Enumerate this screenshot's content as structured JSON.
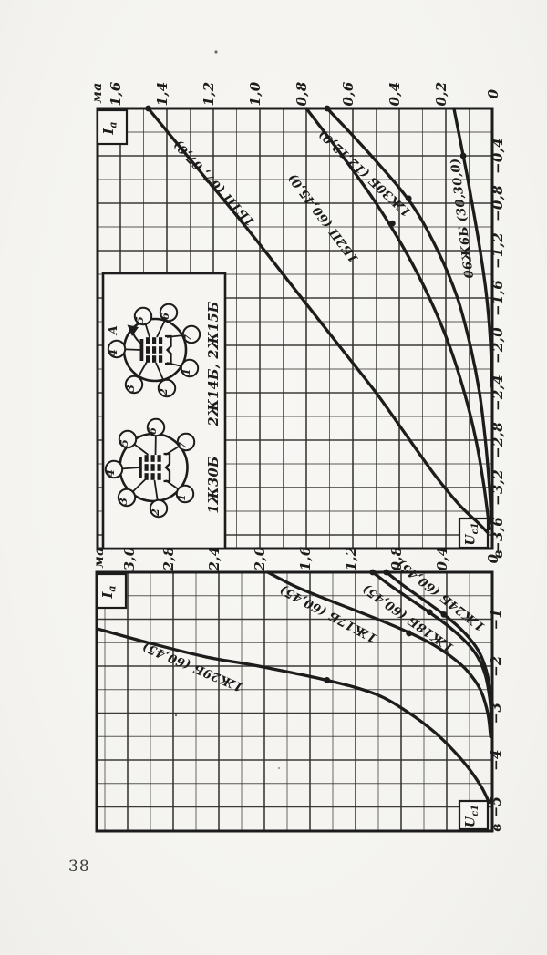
{
  "page": {
    "number": "38",
    "paper_color": "#f6f5f2",
    "ink_color": "#1c1c1c",
    "description": "Scanned book page rotated 90 degrees: two charts of anode current Ia versus first-grid voltage Uc1 for Soviet battery vacuum tubes, with a tube pinout inset box"
  },
  "chart_data": [
    {
      "id": "upper",
      "type": "line",
      "orientation_note": "chart printed rotated 90deg CCW: Ia axis runs along top edge right-to-left, Uc1 axis runs down the right edge",
      "y_axis": {
        "label_base": "I",
        "label_sub": "а",
        "unit": "ма",
        "range": [
          0,
          1.6
        ],
        "minor_step": 0.1,
        "tick_values": [
          1.6,
          1.4,
          1.2,
          1.0,
          0.8,
          0.6,
          0.4,
          0.2,
          0
        ],
        "tick_labels": [
          "1,6",
          "1,4",
          "1,2",
          "1,0",
          "0,8",
          "0,6",
          "0,4",
          "0,2",
          "0"
        ]
      },
      "x_axis": {
        "label_base": "U",
        "label_sub": "с1",
        "unit": "в",
        "range": [
          0,
          -3.6
        ],
        "minor_step": 0.2,
        "tick_values": [
          -0.4,
          -0.8,
          -1.2,
          -1.6,
          -2.0,
          -2.4,
          -2.8,
          -3.2,
          -3.6
        ],
        "tick_labels": [
          "−0,4",
          "−0,8",
          "−1,2",
          "−1,6",
          "−2,0",
          "−2,4",
          "−2,8",
          "−3,2",
          "−3,6"
        ]
      },
      "series": [
        {
          "name": "1Б1П",
          "conditions": "(67, 67,0)",
          "label": "1Б1П (67, 67,0)",
          "points": [
            [
              0,
              1.48
            ],
            [
              -0.5,
              1.27
            ],
            [
              -1.0,
              1.06
            ],
            [
              -1.5,
              0.86
            ],
            [
              -2.0,
              0.66
            ],
            [
              -2.4,
              0.5
            ],
            [
              -2.8,
              0.355
            ],
            [
              -3.1,
              0.245
            ],
            [
              -3.35,
              0.14
            ],
            [
              -3.5,
              0.06
            ],
            [
              -3.58,
              0.02
            ]
          ],
          "markers": [
            [
              0,
              1.48
            ]
          ]
        },
        {
          "name": "1Б2П",
          "conditions": "(60,45,0)",
          "label": "1Б2П (60,45,0)",
          "points": [
            [
              0,
              0.8
            ],
            [
              -0.4,
              0.645
            ],
            [
              -0.8,
              0.5
            ],
            [
              -1.2,
              0.375
            ],
            [
              -1.6,
              0.27
            ],
            [
              -2.0,
              0.185
            ],
            [
              -2.4,
              0.12
            ],
            [
              -2.8,
              0.07
            ],
            [
              -3.2,
              0.035
            ],
            [
              -3.55,
              0.012
            ]
          ],
          "markers": [
            [
              -0.97,
              0.43
            ]
          ]
        },
        {
          "name": "1Ж30Б",
          "conditions": "(12,12,0)",
          "label": "1Ж30Б (12,12,0)",
          "points": [
            [
              0,
              0.71
            ],
            [
              -0.4,
              0.52
            ],
            [
              -0.8,
              0.35
            ],
            [
              -1.2,
              0.235
            ],
            [
              -1.6,
              0.15
            ],
            [
              -2.0,
              0.095
            ],
            [
              -2.4,
              0.055
            ],
            [
              -2.8,
              0.03
            ],
            [
              -3.2,
              0.012
            ],
            [
              -3.5,
              0.004
            ]
          ],
          "markers": [
            [
              0,
              0.71
            ],
            [
              -0.76,
              0.36
            ]
          ]
        },
        {
          "name": "06Ж6Б",
          "conditions": "(30,30,0)",
          "label": "06Ж6Б (30,30,0)",
          "points": [
            [
              0,
              0.165
            ],
            [
              -0.3,
              0.135
            ],
            [
              -0.6,
              0.105
            ],
            [
              -0.9,
              0.078
            ],
            [
              -1.2,
              0.052
            ],
            [
              -1.5,
              0.03
            ],
            [
              -1.8,
              0.014
            ],
            [
              -2.1,
              0.005
            ],
            [
              -2.35,
              0.001
            ]
          ],
          "markers": [
            [
              -0.4,
              0.125
            ]
          ]
        }
      ]
    },
    {
      "id": "lower",
      "type": "line",
      "orientation_note": "chart printed rotated 90deg CCW: Ia axis runs along top edge right-to-left, Uc1 axis runs down the right edge",
      "y_axis": {
        "label_base": "I",
        "label_sub": "а",
        "unit": "ма",
        "range": [
          0,
          3.0
        ],
        "minor_step": 0.2,
        "tick_values": [
          3.0,
          2.8,
          2.4,
          2.0,
          1.6,
          1.2,
          0.8,
          0.4,
          0
        ],
        "tick_labels": [
          "3,0",
          "2,8",
          "2,4",
          "2,0",
          "1,6",
          "1,2",
          "0,8",
          "0,4",
          "0"
        ]
      },
      "x_axis": {
        "label_base": "U",
        "label_sub": "с1",
        "unit": "в",
        "range": [
          0,
          -5
        ],
        "minor_step": 0.5,
        "tick_values": [
          -1,
          -2,
          -3,
          -4,
          -5
        ],
        "tick_labels": [
          "−1",
          "−2",
          "−3",
          "−4",
          "−5"
        ]
      },
      "series": [
        {
          "name": "1Ж29Б",
          "conditions": "(60,45)",
          "label": "1Ж29Б (60,45)",
          "points": [
            [
              -1.2,
              3.47
            ],
            [
              -1.5,
              3.02
            ],
            [
              -1.8,
              2.52
            ],
            [
              -2.0,
              2.05
            ],
            [
              -2.3,
              1.45
            ],
            [
              -2.6,
              1.02
            ],
            [
              -3.0,
              0.73
            ],
            [
              -3.4,
              0.51
            ],
            [
              -3.8,
              0.34
            ],
            [
              -4.2,
              0.2
            ],
            [
              -4.6,
              0.09
            ],
            [
              -4.9,
              0.03
            ]
          ],
          "markers": [
            [
              -2.3,
              1.45
            ]
          ]
        },
        {
          "name": "1Ж17Б",
          "conditions": "(60,45)",
          "label": "1Ж17Б (60,45)",
          "points": [
            [
              0,
              1.97
            ],
            [
              -0.3,
              1.73
            ],
            [
              -0.6,
              1.43
            ],
            [
              -0.9,
              1.11
            ],
            [
              -1.2,
              0.81
            ],
            [
              -1.5,
              0.55
            ],
            [
              -1.8,
              0.36
            ],
            [
              -2.1,
              0.22
            ],
            [
              -2.5,
              0.105
            ],
            [
              -3.0,
              0.04
            ],
            [
              -3.5,
              0.015
            ]
          ],
          "markers": [
            [
              -1.3,
              0.73
            ]
          ]
        },
        {
          "name": "1Ж18Б",
          "conditions": "(60,45)",
          "label": "1Ж18Б (60,45)",
          "points": [
            [
              0,
              1.05
            ],
            [
              -0.3,
              0.885
            ],
            [
              -0.6,
              0.705
            ],
            [
              -0.9,
              0.525
            ],
            [
              -1.2,
              0.36
            ],
            [
              -1.5,
              0.225
            ],
            [
              -1.8,
              0.13
            ],
            [
              -2.2,
              0.06
            ],
            [
              -2.7,
              0.022
            ],
            [
              -3.2,
              0.007
            ]
          ],
          "markers": [
            [
              0,
              1.05
            ],
            [
              -0.85,
              0.55
            ]
          ]
        },
        {
          "name": "1Ж24Б",
          "conditions": "(60,45)",
          "label": "1Ж24Б (60,45)",
          "points": [
            [
              0,
              0.93
            ],
            [
              -0.3,
              0.77
            ],
            [
              -0.6,
              0.595
            ],
            [
              -0.9,
              0.425
            ],
            [
              -1.2,
              0.28
            ],
            [
              -1.5,
              0.17
            ],
            [
              -1.8,
              0.095
            ],
            [
              -2.2,
              0.042
            ],
            [
              -2.7,
              0.012
            ],
            [
              -3.1,
              0.003
            ]
          ],
          "markers": [
            [
              0,
              0.93
            ],
            [
              -0.9,
              0.425
            ]
          ]
        }
      ]
    }
  ],
  "socket_inset": {
    "tubes": [
      {
        "name": "2Ж14Б, 2Ж15Б",
        "anode_mark_label": "А",
        "pins": [
          "1",
          "2",
          "3",
          "4",
          "5",
          "6",
          "7"
        ]
      },
      {
        "name": "1Ж30Б",
        "anode_mark_label": "",
        "pins": [
          "1",
          "2",
          "3",
          "4",
          "5",
          "6",
          "7"
        ]
      }
    ]
  }
}
